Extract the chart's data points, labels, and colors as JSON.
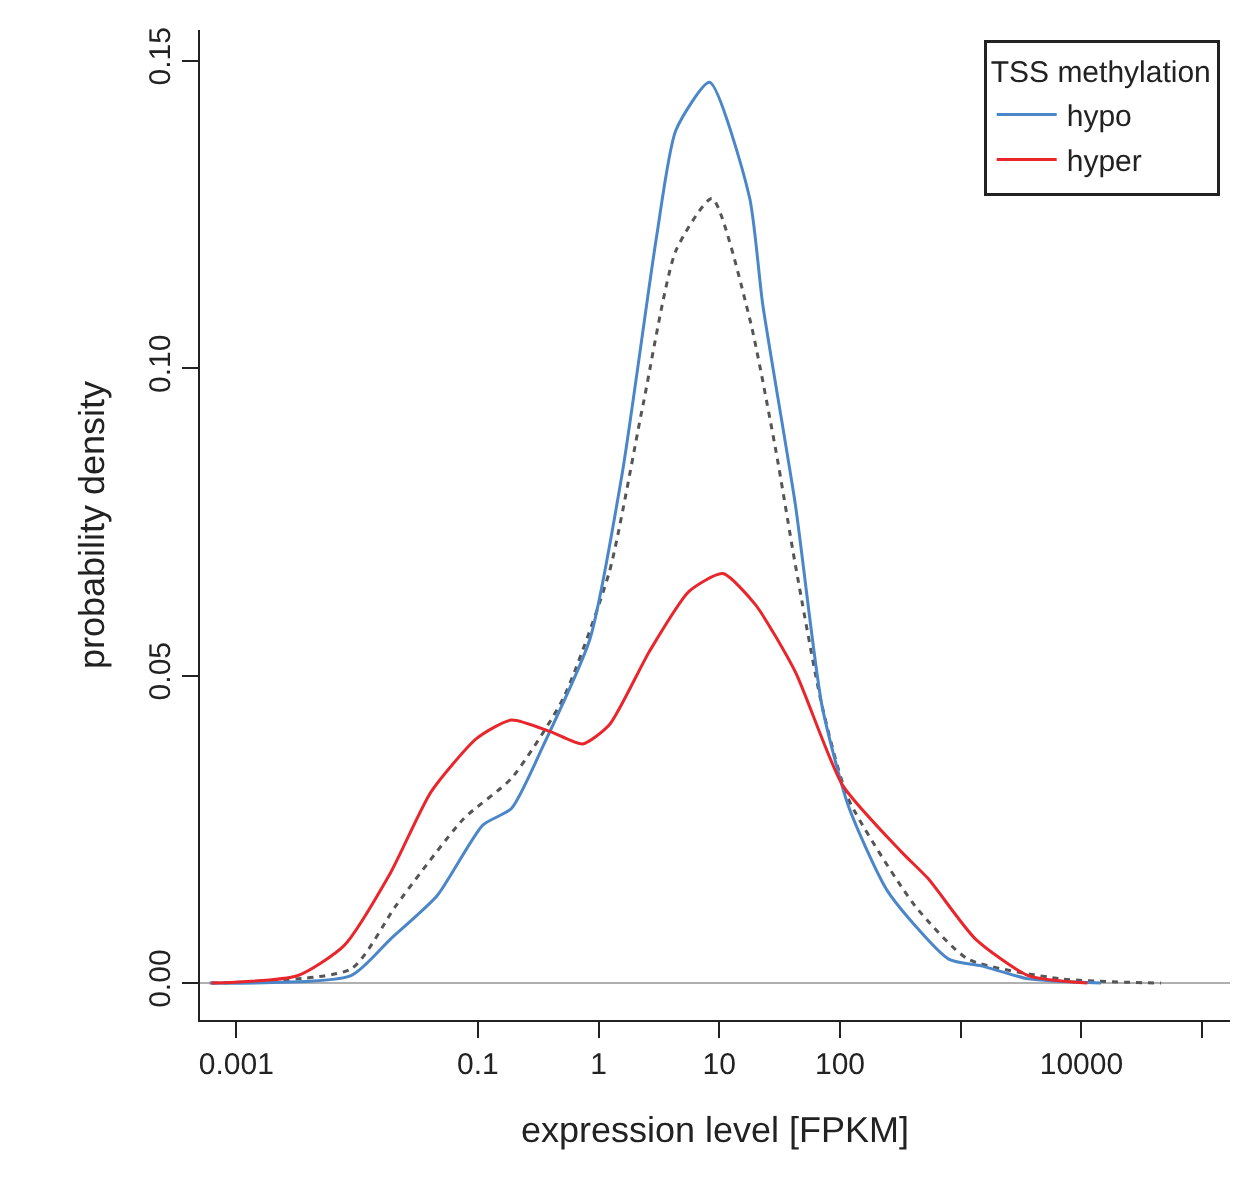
{
  "chart_data": {
    "type": "line",
    "xlabel": "expression level [FPKM]",
    "ylabel": "probability density",
    "legend_title": "TSS methylation",
    "legend": "top right",
    "grid": false,
    "log": "x",
    "xlim": [
      0.0005,
      170000
    ],
    "xticks": [
      0.001,
      0.1,
      1,
      10,
      100,
      {
        "value": 1000,
        "label": null
      },
      10000,
      {
        "value": 100000,
        "label": null
      }
    ],
    "ylim": [
      -0.006,
      0.155
    ],
    "yticks": [
      {
        "value": 0,
        "label": "0.00"
      },
      {
        "value": 0.05,
        "label": "0.05"
      },
      {
        "value": 0.1,
        "label": "0.10"
      },
      {
        "value": 0.15,
        "label": "0.15"
      }
    ],
    "ref_lines": [
      {
        "axis": "y",
        "value": 0,
        "color": "#b0b0b0"
      }
    ],
    "series": [
      {
        "color": "#555555",
        "line_style": "dotted",
        "x": [
          0.00062,
          0.0089,
          0.021,
          0.076,
          0.19,
          0.51,
          1.23,
          2.34,
          4.37,
          8.71,
          17.8,
          29.5,
          42.7,
          70.8,
          117,
          417,
          1150,
          6760,
          45700
        ],
        "values": [
          0,
          0.0023,
          0.0126,
          0.0267,
          0.0333,
          0.0463,
          0.0669,
          0.0941,
          0.1191,
          0.1276,
          0.1082,
          0.0865,
          0.068,
          0.0452,
          0.03,
          0.0126,
          0.0039,
          0.0007,
          0
        ]
      },
      {
        "name": "hypo",
        "color": "#4a86c8",
        "line_style": "solid",
        "x": [
          0.0006,
          0.0089,
          0.019,
          0.046,
          0.11,
          0.19,
          0.35,
          0.85,
          1.58,
          3.02,
          4.37,
          8.32,
          17.8,
          22.9,
          42.7,
          70.8,
          117,
          251,
          794,
          1480,
          3630,
          14500
        ],
        "values": [
          0,
          0.0012,
          0.0072,
          0.0142,
          0.0257,
          0.0284,
          0.0387,
          0.056,
          0.0832,
          0.1213,
          0.1387,
          0.1465,
          0.1278,
          0.1104,
          0.0778,
          0.0452,
          0.0289,
          0.0148,
          0.0039,
          0.0028,
          0.0007,
          0
        ]
      },
      {
        "name": "hyper",
        "color": "#e8262c",
        "line_style": "solid",
        "x": [
          0.00062,
          0.0032,
          0.0078,
          0.019,
          0.041,
          0.098,
          0.19,
          0.4,
          0.74,
          1.23,
          2.63,
          5.62,
          10.7,
          20,
          42.7,
          105,
          324,
          537,
          1320,
          3630,
          11200
        ],
        "values": [
          0,
          0.0012,
          0.0061,
          0.018,
          0.0311,
          0.0398,
          0.0428,
          0.0409,
          0.0389,
          0.042,
          0.0539,
          0.0637,
          0.0666,
          0.0615,
          0.0506,
          0.0322,
          0.0213,
          0.017,
          0.0072,
          0.0012,
          0
        ]
      }
    ]
  }
}
